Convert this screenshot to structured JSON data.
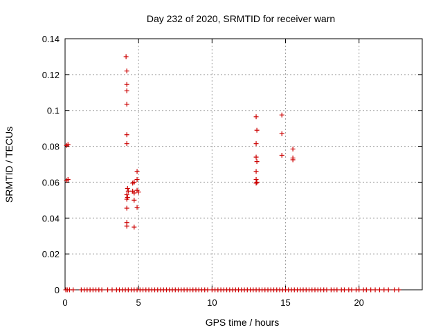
{
  "chart_data": {
    "type": "scatter",
    "title": "Day 232 of 2020, SRMTID for receiver warn",
    "xlabel": "GPS time / hours",
    "ylabel": "SRMTID / TECUs",
    "xlim": [
      0,
      24.3
    ],
    "ylim": [
      0,
      0.14
    ],
    "xticks": [
      0,
      5,
      10,
      15,
      20
    ],
    "xtick_labels": [
      "0",
      "5",
      "10",
      "15",
      "20"
    ],
    "yticks": [
      0,
      0.02,
      0.04,
      0.06,
      0.08,
      0.1,
      0.12,
      0.14
    ],
    "ytick_labels": [
      "0",
      "0.02",
      "0.04",
      "0.06",
      "0.08",
      "0.1",
      "0.12",
      "0.14"
    ],
    "grid": true,
    "marker": "+",
    "series": [
      {
        "name": "SRMTID",
        "color": "#cc0000",
        "points": [
          [
            0.1,
            0.0805
          ],
          [
            0.2,
            0.081
          ],
          [
            0.1,
            0.061
          ],
          [
            0.2,
            0.0615
          ],
          [
            4.15,
            0.13
          ],
          [
            4.2,
            0.122
          ],
          [
            4.2,
            0.1145
          ],
          [
            4.2,
            0.111
          ],
          [
            4.2,
            0.1035
          ],
          [
            4.2,
            0.0865
          ],
          [
            4.2,
            0.0815
          ],
          [
            4.25,
            0.0565
          ],
          [
            4.3,
            0.055
          ],
          [
            4.2,
            0.053
          ],
          [
            4.25,
            0.0515
          ],
          [
            4.2,
            0.0505
          ],
          [
            4.2,
            0.0455
          ],
          [
            4.2,
            0.0375
          ],
          [
            4.2,
            0.0355
          ],
          [
            4.6,
            0.0595
          ],
          [
            4.7,
            0.06
          ],
          [
            4.6,
            0.055
          ],
          [
            4.7,
            0.054
          ],
          [
            4.7,
            0.05
          ],
          [
            4.7,
            0.035
          ],
          [
            4.9,
            0.066
          ],
          [
            4.9,
            0.0615
          ],
          [
            4.9,
            0.0555
          ],
          [
            5.0,
            0.0545
          ],
          [
            4.9,
            0.046
          ],
          [
            13.0,
            0.0965
          ],
          [
            13.05,
            0.089
          ],
          [
            13.0,
            0.0815
          ],
          [
            13.0,
            0.074
          ],
          [
            13.05,
            0.0715
          ],
          [
            13.0,
            0.066
          ],
          [
            13.0,
            0.0615
          ],
          [
            13.05,
            0.06
          ],
          [
            13.0,
            0.0595
          ],
          [
            14.75,
            0.0975
          ],
          [
            14.75,
            0.087
          ],
          [
            14.75,
            0.075
          ],
          [
            15.5,
            0.0785
          ],
          [
            15.5,
            0.0735
          ],
          [
            15.5,
            0.0725
          ],
          [
            0.05,
            0
          ],
          [
            0.15,
            0
          ],
          [
            0.3,
            0
          ],
          [
            0.55,
            0
          ],
          [
            1.1,
            0
          ],
          [
            1.3,
            0
          ],
          [
            1.5,
            0
          ],
          [
            1.7,
            0
          ],
          [
            1.9,
            0
          ],
          [
            2.1,
            0
          ],
          [
            2.3,
            0
          ],
          [
            2.5,
            0
          ],
          [
            2.9,
            0
          ],
          [
            3.2,
            0
          ],
          [
            3.5,
            0
          ],
          [
            3.7,
            0
          ],
          [
            3.9,
            0
          ],
          [
            4.1,
            0
          ],
          [
            4.3,
            0
          ],
          [
            4.5,
            0
          ],
          [
            4.7,
            0
          ],
          [
            4.9,
            0
          ],
          [
            5.1,
            0
          ],
          [
            5.3,
            0
          ],
          [
            5.5,
            0
          ],
          [
            5.7,
            0
          ],
          [
            5.9,
            0
          ],
          [
            6.1,
            0
          ],
          [
            6.3,
            0
          ],
          [
            6.5,
            0
          ],
          [
            6.7,
            0
          ],
          [
            6.9,
            0
          ],
          [
            7.1,
            0
          ],
          [
            7.3,
            0
          ],
          [
            7.5,
            0
          ],
          [
            7.7,
            0
          ],
          [
            7.9,
            0
          ],
          [
            8.1,
            0
          ],
          [
            8.3,
            0
          ],
          [
            8.5,
            0
          ],
          [
            8.7,
            0
          ],
          [
            8.9,
            0
          ],
          [
            9.1,
            0
          ],
          [
            9.3,
            0
          ],
          [
            9.5,
            0
          ],
          [
            9.7,
            0
          ],
          [
            10.0,
            0
          ],
          [
            10.2,
            0
          ],
          [
            10.4,
            0
          ],
          [
            10.6,
            0
          ],
          [
            10.8,
            0
          ],
          [
            11.0,
            0
          ],
          [
            11.2,
            0
          ],
          [
            11.4,
            0
          ],
          [
            11.6,
            0
          ],
          [
            11.8,
            0
          ],
          [
            12.0,
            0
          ],
          [
            12.2,
            0
          ],
          [
            12.4,
            0
          ],
          [
            12.6,
            0
          ],
          [
            12.8,
            0
          ],
          [
            13.0,
            0
          ],
          [
            13.2,
            0
          ],
          [
            13.4,
            0
          ],
          [
            13.6,
            0
          ],
          [
            13.8,
            0
          ],
          [
            14.0,
            0
          ],
          [
            14.2,
            0
          ],
          [
            14.4,
            0
          ],
          [
            14.6,
            0
          ],
          [
            14.8,
            0
          ],
          [
            15.0,
            0
          ],
          [
            15.2,
            0
          ],
          [
            15.4,
            0
          ],
          [
            15.6,
            0
          ],
          [
            15.8,
            0
          ],
          [
            16.0,
            0
          ],
          [
            16.2,
            0
          ],
          [
            16.4,
            0
          ],
          [
            16.6,
            0
          ],
          [
            16.8,
            0
          ],
          [
            17.0,
            0
          ],
          [
            17.2,
            0
          ],
          [
            17.4,
            0
          ],
          [
            17.6,
            0
          ],
          [
            17.8,
            0
          ],
          [
            18.1,
            0
          ],
          [
            18.3,
            0
          ],
          [
            18.5,
            0
          ],
          [
            18.8,
            0
          ],
          [
            19.0,
            0
          ],
          [
            19.3,
            0
          ],
          [
            19.5,
            0
          ],
          [
            19.8,
            0
          ],
          [
            20.0,
            0
          ],
          [
            20.3,
            0
          ],
          [
            20.5,
            0
          ],
          [
            20.8,
            0
          ],
          [
            21.1,
            0
          ],
          [
            21.4,
            0
          ],
          [
            21.7,
            0
          ],
          [
            22.0,
            0
          ],
          [
            22.4,
            0
          ],
          [
            22.7,
            0
          ]
        ]
      }
    ]
  }
}
